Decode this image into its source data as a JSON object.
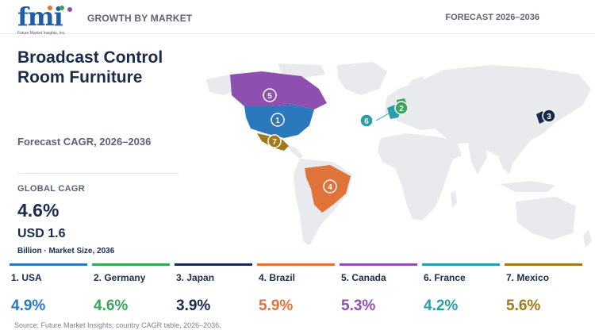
{
  "header": {
    "logo_text": "fmi",
    "logo_sub": "Future Market Insights, Inc.",
    "section": "GROWTH BY MARKET",
    "forecast_range": "FORECAST 2026–2036"
  },
  "main": {
    "title": "Broadcast Control Room Furniture",
    "subtitle": "Forecast CAGR, 2026–2036",
    "global_cagr_label": "GLOBAL CAGR",
    "global_cagr_value": "4.6%",
    "market_size_value": "USD 1.6",
    "market_size_note": "Billion · Market Size, 2036"
  },
  "countries": [
    {
      "rank": "1",
      "label": "1. USA",
      "cagr": "4.9%",
      "color": "#2b78bd"
    },
    {
      "rank": "2",
      "label": "2. Germany",
      "cagr": "4.6%",
      "color": "#3aa55c"
    },
    {
      "rank": "3",
      "label": "3. Japan",
      "cagr": "3.9%",
      "color": "#16294f"
    },
    {
      "rank": "4",
      "label": "4. Brazil",
      "cagr": "5.9%",
      "color": "#e0733a"
    },
    {
      "rank": "5",
      "label": "5. Canada",
      "cagr": "5.3%",
      "color": "#8e4fb0"
    },
    {
      "rank": "6",
      "label": "6. France",
      "cagr": "4.2%",
      "color": "#2a9daa"
    },
    {
      "rank": "7",
      "label": "7. Mexico",
      "cagr": "5.6%",
      "color": "#a0791e"
    }
  ],
  "source": "Source: Future Market Insights; country CAGR table, 2026–2036."
}
